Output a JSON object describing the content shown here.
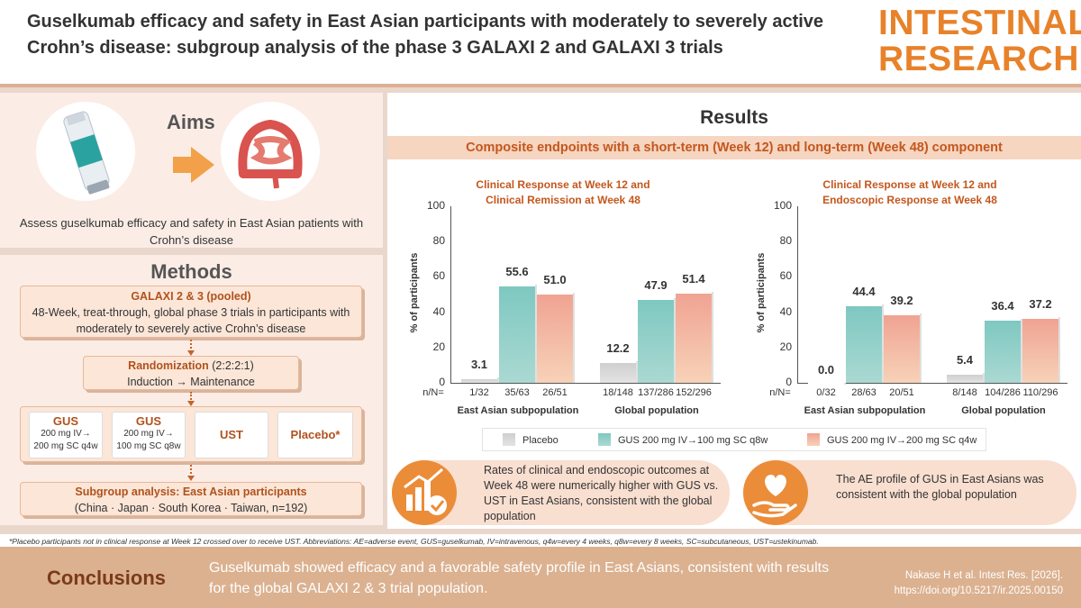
{
  "header": {
    "title": "Guselkumab efficacy and safety in East Asian participants with moderately to severely active Crohn’s disease: subgroup analysis of the phase 3 GALAXI 2 and GALAXI 3 trials",
    "brand_line1": "INTESTINAL",
    "brand_line2": "RESEARCH"
  },
  "aims": {
    "title": "Aims",
    "text": "Assess guselkumab efficacy and safety in East Asian patients with Crohn’s disease"
  },
  "methods": {
    "title": "Methods",
    "box1_title": "GALAXI 2 & 3 (pooled)",
    "box1_text": "48-Week, treat-through, global phase 3 trials in participants with moderately to severely active Crohn’s disease",
    "rand_title": "Randomization",
    "rand_ratio": "(2:2:2:1)",
    "rand_text": "Induction → Maintenance",
    "arms": [
      {
        "name": "GUS",
        "detail1": "200 mg IV→",
        "detail2": "200 mg SC q4w"
      },
      {
        "name": "GUS",
        "detail1": "200 mg IV→",
        "detail2": "100 mg SC q8w"
      },
      {
        "name": "UST"
      },
      {
        "name": "Placebo*"
      }
    ],
    "subgroup_title": "Subgroup analysis: East Asian participants",
    "subgroup_text": "(China · Japan · South Korea · Taiwan, n=192)"
  },
  "results": {
    "title": "Results",
    "band": "Composite endpoints with a short-term (Week 12) and long-term (Week 48) component",
    "legend": [
      "Placebo",
      "GUS 200 mg IV→100 mg SC q8w",
      "GUS 200 mg IV→200 mg SC q4w"
    ],
    "box1_text": "Rates of clinical and endoscopic outcomes at Week 48 were numerically higher with GUS vs. UST in East Asians, consistent with the global population",
    "box2_text": "The AE profile of GUS in East Asians was consistent with the global population"
  },
  "colors": {
    "accent": "#e8822a",
    "placebo": "#d5d5d5",
    "gus_q8w": "#8fcfc8",
    "gus_q4w": "#f3b7a2",
    "title_orange": "#c4571d"
  },
  "chart_data": [
    {
      "type": "bar",
      "title_line1": "Clinical Response at Week 12 and",
      "title_line2": "Clinical Remission at Week 48",
      "ylabel": "% of participants",
      "ylim": [
        0,
        100
      ],
      "yticks": [
        0,
        20,
        40,
        60,
        80,
        100
      ],
      "n_prefix": "n/N=",
      "groups": [
        "East Asian subpopulation",
        "Global population"
      ],
      "series": [
        {
          "name": "Placebo",
          "values": [
            3.1,
            12.2
          ],
          "n": [
            "1/32",
            "18/148"
          ]
        },
        {
          "name": "GUS 200 mg IV→100 mg SC q8w",
          "values": [
            55.6,
            47.9
          ],
          "n": [
            "35/63",
            "137/286"
          ]
        },
        {
          "name": "GUS 200 mg IV→200 mg SC q4w",
          "values": [
            51.0,
            51.4
          ],
          "n": [
            "26/51",
            "152/296"
          ]
        }
      ]
    },
    {
      "type": "bar",
      "title_line1": "Clinical Response at Week 12 and",
      "title_line2": "Endoscopic Response at Week 48",
      "ylabel": "% of participants",
      "ylim": [
        0,
        100
      ],
      "yticks": [
        0,
        20,
        40,
        60,
        80,
        100
      ],
      "n_prefix": "n/N=",
      "groups": [
        "East Asian subpopulation",
        "Global population"
      ],
      "series": [
        {
          "name": "Placebo",
          "values": [
            0.0,
            5.4
          ],
          "n": [
            "0/32",
            "8/148"
          ]
        },
        {
          "name": "GUS 200 mg IV→100 mg SC q8w",
          "values": [
            44.4,
            36.4
          ],
          "n": [
            "28/63",
            "104/286"
          ]
        },
        {
          "name": "GUS 200 mg IV→200 mg SC q4w",
          "values": [
            39.2,
            37.2
          ],
          "n": [
            "20/51",
            "110/296"
          ]
        }
      ]
    }
  ],
  "footnote": "*Placebo participants not in clinical response at Week 12 crossed over to receive UST. Abbreviations: AE=adverse event, GUS=guselkumab, IV=intravenous, q4w=every 4 weeks, q8w=every 8 weeks, SC=subcutaneous, UST=ustekinumab.",
  "conclusions": {
    "title": "Conclusions",
    "text": "Guselkumab showed efficacy and a favorable safety profile in East Asians, consistent with results for the global GALAXI 2 & 3 trial population.",
    "cite_line1": "Nakase H et al. Intest Res. [2026].",
    "cite_line2": "https://doi.org/10.5217/ir.2025.00150"
  }
}
